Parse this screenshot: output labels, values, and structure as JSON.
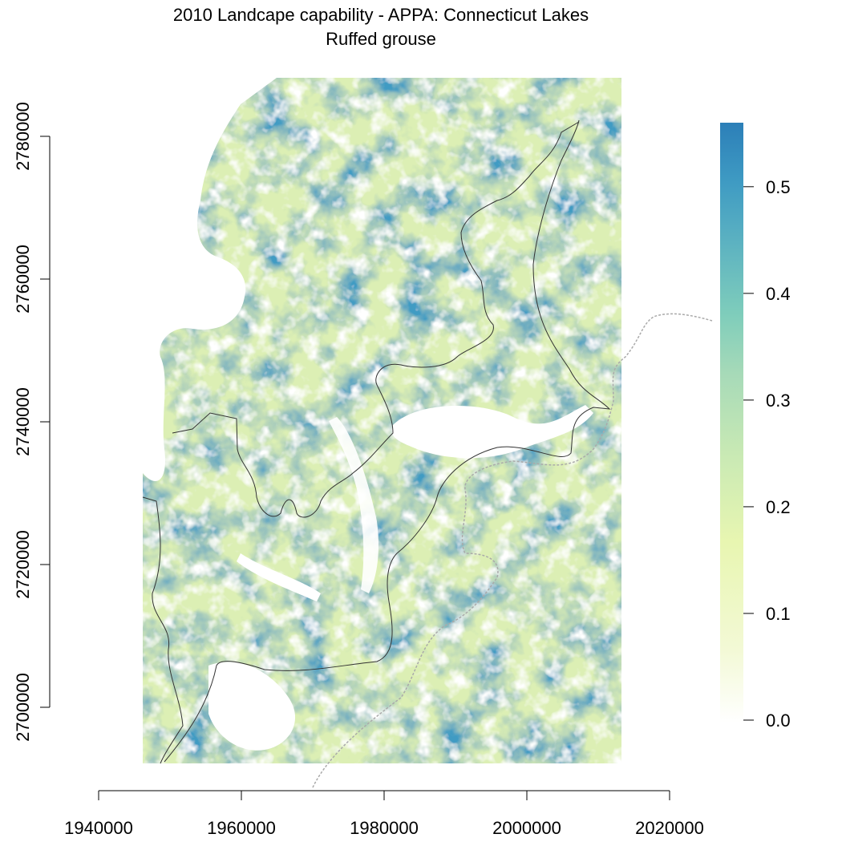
{
  "title": "2010 Landcape capability - APPA: Connecticut Lakes",
  "subtitle": "Ruffed grouse",
  "map": {
    "x_axis": {
      "range": [
        1940000,
        2020000
      ],
      "ticks": [
        "1940000",
        "1960000",
        "1980000",
        "2000000",
        "2020000"
      ]
    },
    "y_axis": {
      "ticks": [
        "2700000",
        "2720000",
        "2740000",
        "2760000",
        "2780000"
      ]
    },
    "raster_extent": {
      "x": [
        1946000,
        2013000
      ],
      "y": [
        2691500,
        2788000
      ]
    },
    "legend": {
      "position": "right",
      "range": [
        0.0,
        0.56
      ],
      "ticks": [
        "0.0",
        "0.1",
        "0.2",
        "0.3",
        "0.4",
        "0.5"
      ],
      "colors": [
        "#ffffff",
        "#f3f9d6",
        "#e8f6b1",
        "#c8e9b4",
        "#a7dab8",
        "#7fcdbb",
        "#5cb2c1",
        "#3f9bc3",
        "#2c7fb8"
      ]
    }
  }
}
